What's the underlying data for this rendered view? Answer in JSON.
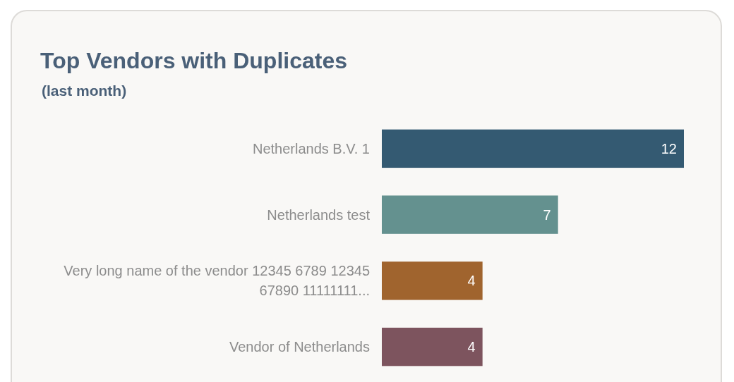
{
  "chart_data": {
    "type": "bar",
    "orientation": "horizontal",
    "title": "Top Vendors with Duplicates",
    "subtitle": "(last month)",
    "categories": [
      "Netherlands B.V. 1",
      "Netherlands test",
      "Very long name of the vendor 12345 6789 12345 67890 11111111...",
      "Vendor of Netherlands"
    ],
    "values": [
      12,
      7,
      4,
      4
    ],
    "colors": [
      "#345a72",
      "#64918f",
      "#a0642e",
      "#7d545e"
    ],
    "data_labels": true
  }
}
